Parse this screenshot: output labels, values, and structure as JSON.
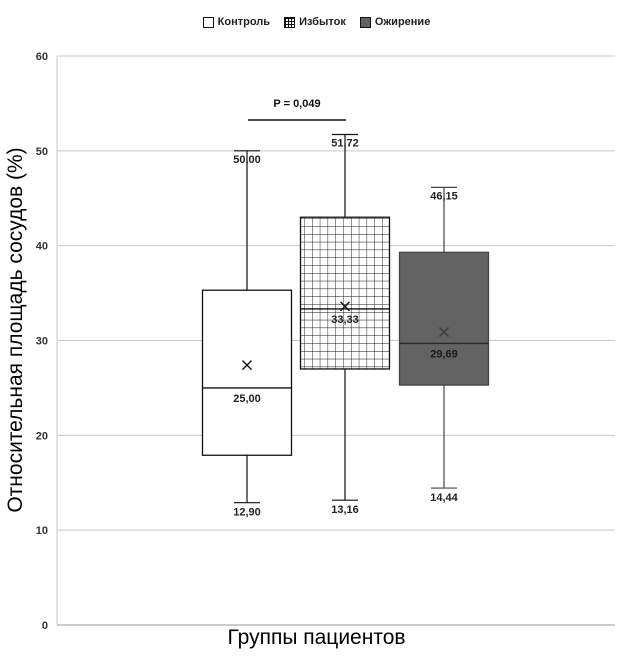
{
  "chart_data": {
    "type": "box",
    "ylabel": "Относительная площадь сосудов (%)",
    "xlabel": "Группы пациентов",
    "ylim": [
      0,
      60
    ],
    "yticks": [
      0,
      10,
      20,
      30,
      40,
      50,
      60
    ],
    "grid": true,
    "legend_position": "top-center",
    "annotation": "P = 0,049",
    "series": [
      {
        "name": "Контроль",
        "fill": "plain",
        "color": "#ffffff",
        "min": 12.9,
        "q1": 17.9,
        "median": 25.0,
        "q3": 35.3,
        "max": 50.0,
        "mean": 27.4,
        "labels": {
          "min": "12,90",
          "median": "25,00",
          "max": "50,00"
        }
      },
      {
        "name": "Избыток",
        "fill": "grid",
        "color": "#ffffff",
        "min": 13.16,
        "q1": 27.0,
        "median": 33.33,
        "q3": 43.0,
        "max": 51.72,
        "mean": 33.6,
        "labels": {
          "min": "13,16",
          "median": "33,33",
          "max": "51,72"
        }
      },
      {
        "name": "Ожирение",
        "fill": "dark",
        "color": "#636363",
        "min": 14.44,
        "q1": 25.3,
        "median": 29.69,
        "q3": 39.3,
        "max": 46.15,
        "mean": 30.9,
        "labels": {
          "min": "14,44",
          "median": "29,69",
          "max": "46,15"
        }
      }
    ]
  }
}
